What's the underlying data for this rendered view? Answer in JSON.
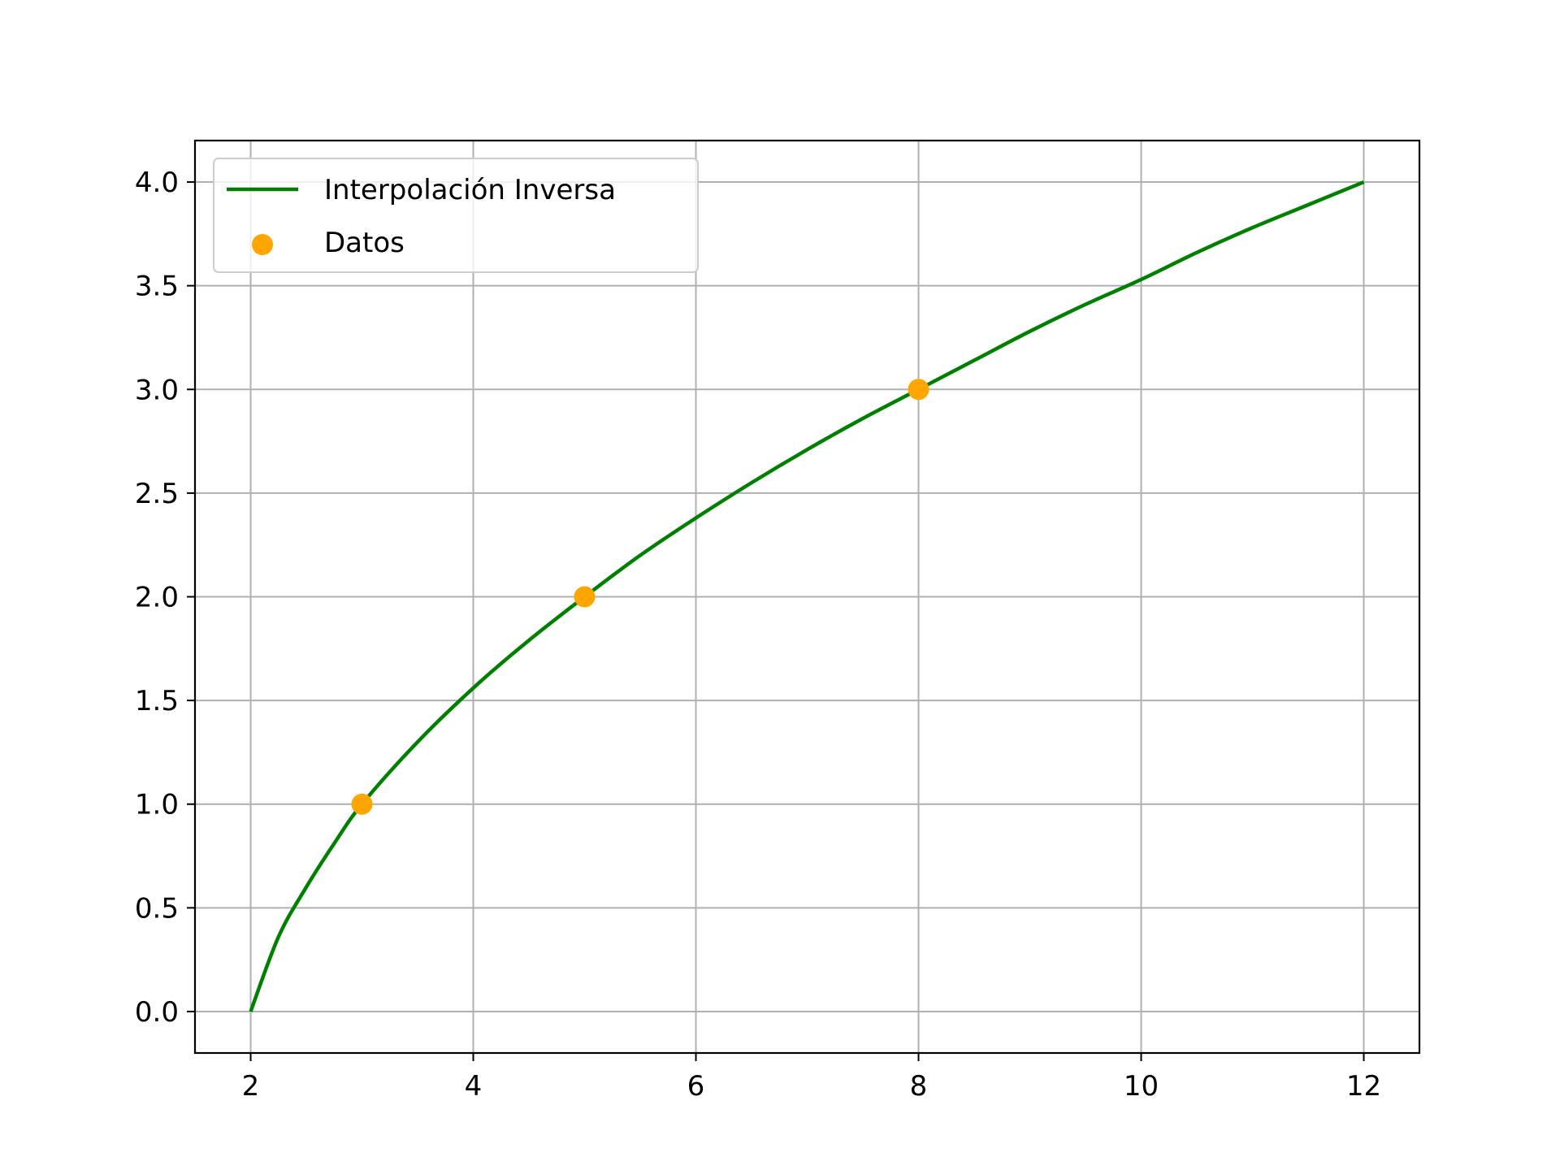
{
  "chart_data": {
    "type": "line",
    "title": "",
    "xlabel": "",
    "ylabel": "",
    "xlim": [
      1.5,
      12.5
    ],
    "ylim": [
      -0.2,
      4.2
    ],
    "grid": true,
    "legend_position": "top-left",
    "xticks": [
      2,
      4,
      6,
      8,
      10,
      12
    ],
    "yticks": [
      0.0,
      0.5,
      1.0,
      1.5,
      2.0,
      2.5,
      3.0,
      3.5,
      4.0
    ],
    "xtick_labels": [
      "2",
      "4",
      "6",
      "8",
      "10",
      "12"
    ],
    "ytick_labels": [
      "0.0",
      "0.5",
      "1.0",
      "1.5",
      "2.0",
      "2.5",
      "3.0",
      "3.5",
      "4.0"
    ],
    "series": [
      {
        "name": "Interpolación Inversa",
        "kind": "line",
        "color": "#008000",
        "x": [
          2.0,
          2.25,
          2.5,
          2.75,
          3.0,
          3.5,
          4.0,
          4.5,
          5.0,
          5.5,
          6.0,
          6.5,
          7.0,
          7.5,
          8.0,
          8.5,
          9.0,
          9.5,
          10.0,
          10.5,
          11.0,
          11.5,
          12.0
        ],
        "y": [
          0.0,
          0.36,
          0.6,
          0.81,
          1.0,
          1.3,
          1.56,
          1.79,
          2.0,
          2.2,
          2.38,
          2.55,
          2.71,
          2.86,
          3.0,
          3.14,
          3.28,
          3.41,
          3.53,
          3.66,
          3.78,
          3.89,
          4.0
        ]
      },
      {
        "name": "Datos",
        "kind": "scatter",
        "color": "#FFA500",
        "x": [
          3,
          5,
          8
        ],
        "y": [
          1,
          2,
          3
        ]
      }
    ]
  }
}
